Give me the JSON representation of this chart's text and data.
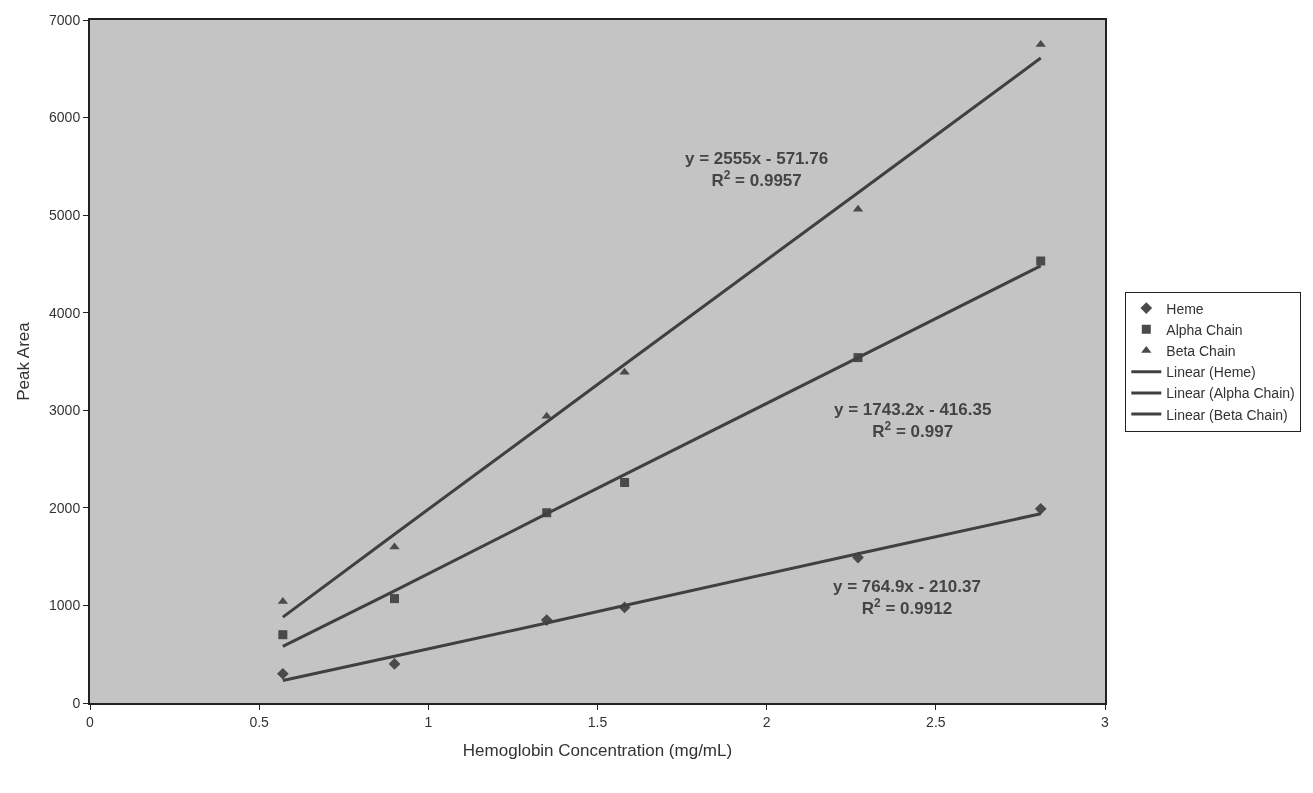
{
  "chart_data": {
    "type": "scatter",
    "xlabel": "Hemoglobin Concentration (mg/mL)",
    "ylabel": "Peak Area",
    "x": [
      0.57,
      0.9,
      1.35,
      1.58,
      2.27,
      2.81
    ],
    "series": [
      {
        "name": "Heme",
        "marker": "diamond",
        "color": "#4a4a4a",
        "values": [
          300,
          400,
          850,
          980,
          1490,
          1990
        ]
      },
      {
        "name": "Alpha Chain",
        "marker": "square",
        "color": "#4a4a4a",
        "values": [
          700,
          1070,
          1950,
          2260,
          3540,
          4530
        ]
      },
      {
        "name": "Beta Chain",
        "marker": "triangle",
        "color": "#4a4a4a",
        "values": [
          1040,
          1600,
          2940,
          3390,
          5060,
          6750
        ]
      },
      {
        "name": "Linear (Heme)",
        "type": "line",
        "marker": "none",
        "line_style": "solid",
        "color": "#404040",
        "values": [
          230,
          480,
          820,
          1000,
          1530,
          1940
        ]
      },
      {
        "name": "Linear (Alpha Chain)",
        "type": "line",
        "marker": "none",
        "line_style": "solid",
        "color": "#404040",
        "values": [
          580,
          1150,
          1940,
          2340,
          3540,
          4480
        ]
      },
      {
        "name": "Linear (Beta Chain)",
        "type": "line",
        "marker": "none",
        "line_style": "solid",
        "color": "#404040",
        "values": [
          880,
          1730,
          2880,
          3470,
          5230,
          6610
        ]
      }
    ],
    "xlim": [
      0,
      3
    ],
    "xticks": [
      0,
      0.5,
      1,
      1.5,
      2,
      2.5,
      3
    ],
    "ylim": [
      0,
      7000
    ],
    "yticks": [
      0,
      1000,
      2000,
      3000,
      4000,
      5000,
      6000,
      7000
    ],
    "grid": false,
    "legend": "right",
    "annotations": [
      "y = 2555x - 571.76\nR$^{2}$ = 0.9957",
      "y = 1743.2x - 416.35\nR$^{2}$ = 0.997",
      "y = 764.9x - 210.37\nR$^{2}$ = 0.9912"
    ]
  }
}
